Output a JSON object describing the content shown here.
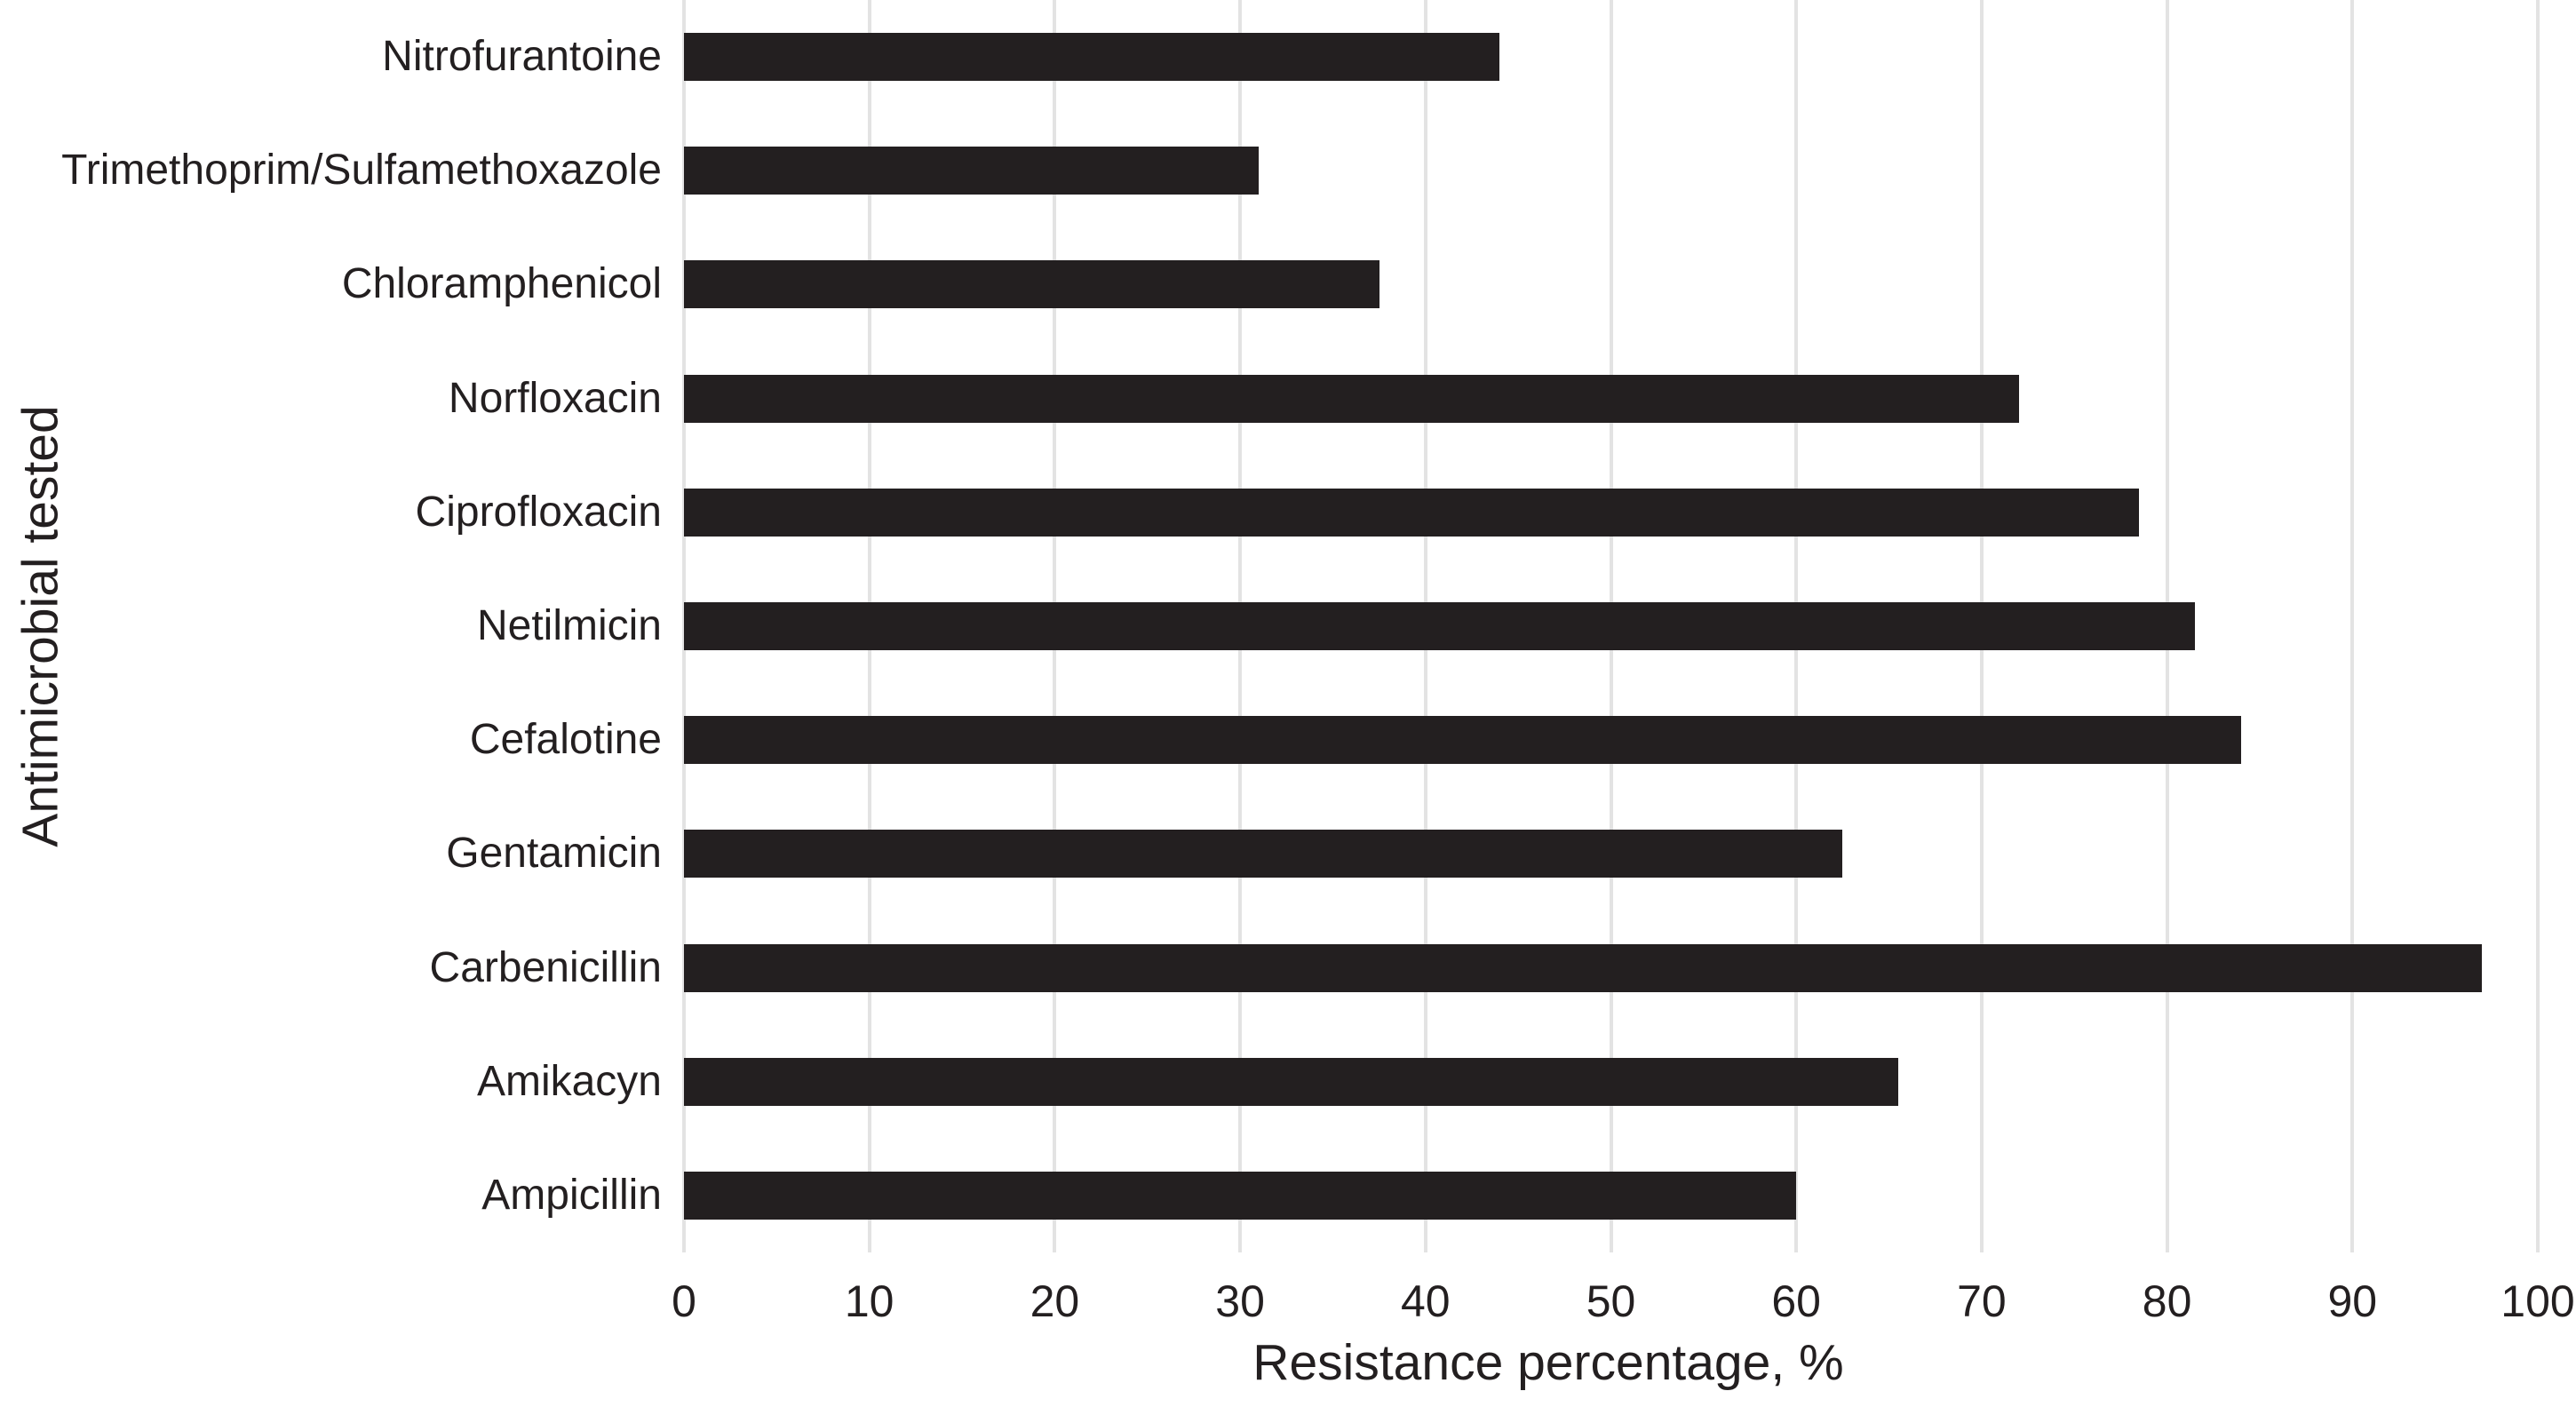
{
  "figure": {
    "xlabel": "Resistance percentage, %",
    "ylabel": "Antimicrobial tested"
  },
  "chart_data": {
    "type": "bar",
    "orientation": "horizontal",
    "title": "",
    "categories": [
      "Nitrofurantoine",
      "Trimethoprim/Sulfamethoxazole",
      "Chloramphenicol",
      "Norfloxacin",
      "Ciprofloxacin",
      "Netilmicin",
      "Cefalotine",
      "Gentamicin",
      "Carbenicillin",
      "Amikacyn",
      "Ampicillin"
    ],
    "values": [
      44,
      31,
      37.5,
      72,
      78.5,
      81.5,
      84,
      62.5,
      97,
      65.5,
      60
    ],
    "xlabel": "Resistance percentage, %",
    "ylabel": "Antimicrobial tested",
    "xlim": [
      0,
      100
    ],
    "x_ticks": [
      0,
      10,
      20,
      30,
      40,
      50,
      60,
      70,
      80,
      90,
      100
    ],
    "grid": "vertical-major-only",
    "legend": "none",
    "bar_color": "#231f20",
    "grid_color": "#e3e3e3",
    "text_color": "#231f20",
    "background": "#ffffff"
  }
}
